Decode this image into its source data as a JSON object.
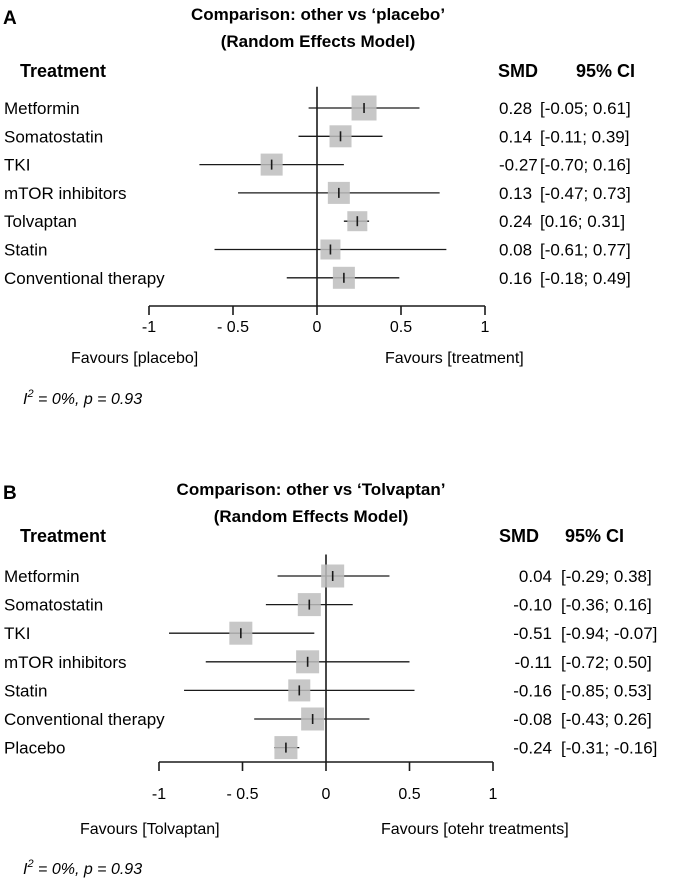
{
  "chart_data": [
    {
      "type": "forest",
      "panel": "A",
      "title_line1": "Comparison: other vs ‘placebo’",
      "title_line2": "(Random Effects Model)",
      "col_treatment": "Treatment",
      "col_smd": "SMD",
      "col_ci": "95% CI",
      "xlim": [
        -1,
        1
      ],
      "ticks": [
        -1,
        -0.5,
        0,
        0.5,
        1
      ],
      "tick_labels": [
        "-1",
        "- 0.5",
        "0",
        "0.5",
        "1"
      ],
      "favours_left": "Favours [placebo]",
      "favours_right": "Favours [treatment]",
      "heterogeneity_i2": "I",
      "heterogeneity_sup": "2",
      "heterogeneity_rest": " = 0%,  p = 0.93",
      "rows": [
        {
          "name": "Metformin",
          "smd": 0.28,
          "lo": -0.05,
          "hi": 0.61,
          "smd_text": "0.28",
          "ci_text": "[-0.05; 0.61]",
          "weight": 1.25
        },
        {
          "name": "Somatostatin",
          "smd": 0.14,
          "lo": -0.11,
          "hi": 0.39,
          "smd_text": "0.14",
          "ci_text": "[-0.11; 0.39]",
          "weight": 1.1
        },
        {
          "name": "TKI",
          "smd": -0.27,
          "lo": -0.7,
          "hi": 0.16,
          "smd_text": "-0.27",
          "ci_text": "[-0.70; 0.16]",
          "weight": 1.1
        },
        {
          "name": "mTOR inhibitors",
          "smd": 0.13,
          "lo": -0.47,
          "hi": 0.73,
          "smd_text": "0.13",
          "ci_text": "[-0.47; 0.73]",
          "weight": 1.1
        },
        {
          "name": "Tolvaptan",
          "smd": 0.24,
          "lo": 0.16,
          "hi": 0.31,
          "smd_text": "0.24",
          "ci_text": "[0.16; 0.31]",
          "weight": 1.0
        },
        {
          "name": "Statin",
          "smd": 0.08,
          "lo": -0.61,
          "hi": 0.77,
          "smd_text": "0.08",
          "ci_text": "[-0.61; 0.77]",
          "weight": 1.0
        },
        {
          "name": "Conventional therapy",
          "smd": 0.16,
          "lo": -0.18,
          "hi": 0.49,
          "smd_text": "0.16",
          "ci_text": "[-0.18; 0.49]",
          "weight": 1.1
        }
      ]
    },
    {
      "type": "forest",
      "panel": "B",
      "title_line1": "Comparison: other vs ‘Tolvaptan’",
      "title_line2": "(Random Effects Model)",
      "col_treatment": "Treatment",
      "col_smd": "SMD",
      "col_ci": "95% CI",
      "xlim": [
        -1,
        1
      ],
      "ticks": [
        -1,
        -0.5,
        0,
        0.5,
        1
      ],
      "tick_labels": [
        "-1",
        "- 0.5",
        "0",
        "0.5",
        "1"
      ],
      "favours_left": "Favours [Tolvaptan]",
      "favours_right": "Favours [otehr treatments]",
      "heterogeneity_i2": "I",
      "heterogeneity_sup": "2",
      "heterogeneity_rest": " = 0%,  p = 0.93",
      "rows": [
        {
          "name": "Metformin",
          "smd": 0.04,
          "lo": -0.29,
          "hi": 0.38,
          "smd_text": "0.04",
          "ci_text": "[-0.29; 0.38]",
          "weight": 1.15
        },
        {
          "name": "Somatostatin",
          "smd": -0.1,
          "lo": -0.36,
          "hi": 0.16,
          "smd_text": "-0.10",
          "ci_text": "[-0.36; 0.16]",
          "weight": 1.15
        },
        {
          "name": "TKI",
          "smd": -0.51,
          "lo": -0.94,
          "hi": -0.07,
          "smd_text": "-0.51",
          "ci_text": "[-0.94; -0.07]",
          "weight": 1.15
        },
        {
          "name": "mTOR inhibitors",
          "smd": -0.11,
          "lo": -0.72,
          "hi": 0.5,
          "smd_text": "-0.11",
          "ci_text": "[-0.72; 0.50]",
          "weight": 1.15
        },
        {
          "name": "Statin",
          "smd": -0.16,
          "lo": -0.85,
          "hi": 0.53,
          "smd_text": "-0.16",
          "ci_text": "[-0.85; 0.53]",
          "weight": 1.1
        },
        {
          "name": "Conventional therapy",
          "smd": -0.08,
          "lo": -0.43,
          "hi": 0.26,
          "smd_text": "-0.08",
          "ci_text": "[-0.43; 0.26]",
          "weight": 1.15
        },
        {
          "name": "Placebo",
          "smd": -0.24,
          "lo": -0.31,
          "hi": -0.16,
          "smd_text": "-0.24",
          "ci_text": "[-0.31; -0.16]",
          "weight": 1.15
        }
      ]
    }
  ]
}
